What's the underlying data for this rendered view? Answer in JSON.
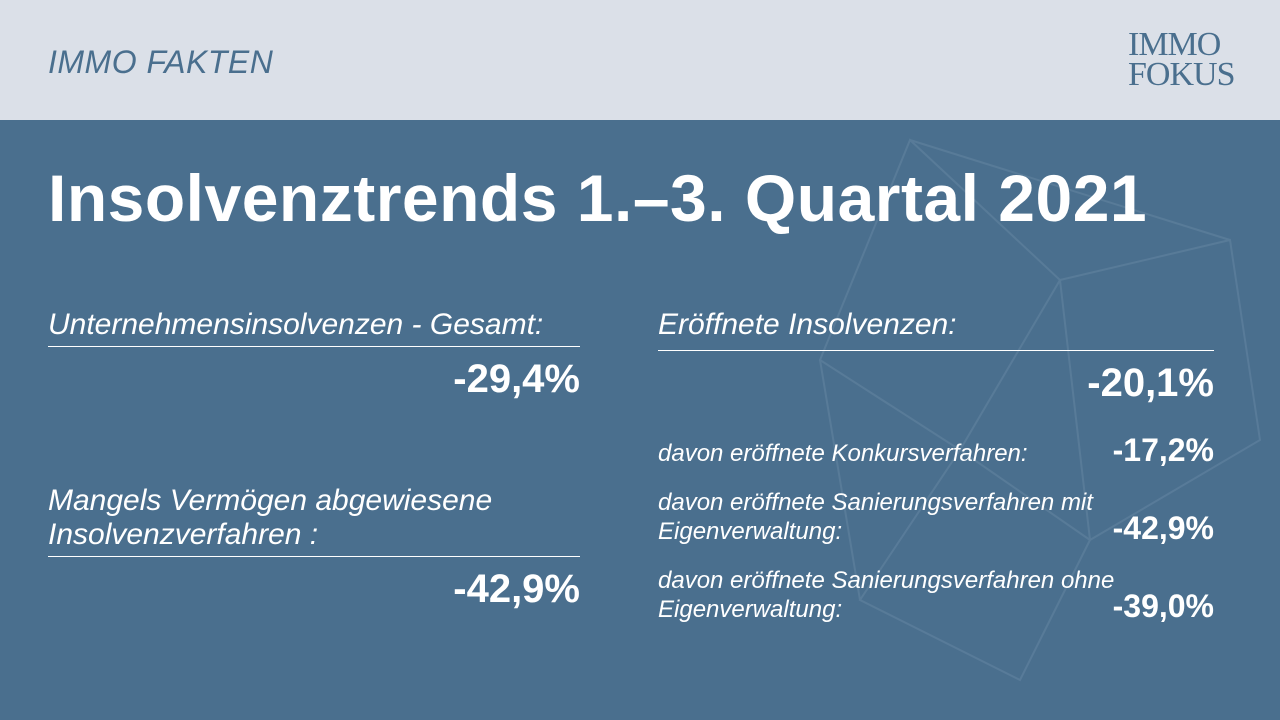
{
  "header": {
    "section_label": "IMMO FAKTEN",
    "logo_line1": "IMMO",
    "logo_line2": "FOKUS"
  },
  "title": "Insolvenztrends 1.–3. Quartal 2021",
  "left": {
    "stat1": {
      "label": "Unternehmensinsolvenzen - Gesamt:",
      "value": "-29,4%"
    },
    "stat2": {
      "label": "Mangels Vermögen abgewiesene Insolvenzverfahren :",
      "value": "-42,9%"
    }
  },
  "right": {
    "main": {
      "label": "Eröffnete Insolvenzen:",
      "value": "-20,1%"
    },
    "sub": [
      {
        "label": "davon eröffnete Konkursverfahren:",
        "value": "-17,2%"
      },
      {
        "label": "davon eröffnete Sanierungsverfahren mit Eigenverwaltung:",
        "value": "-42,9%"
      },
      {
        "label": "davon eröffnete Sanierungsverfahren ohne Eigenverwaltung:",
        "value": "-39,0%"
      }
    ]
  },
  "colors": {
    "background": "#4a6f8e",
    "header_background": "#dbe0e8",
    "text": "#ffffff"
  }
}
